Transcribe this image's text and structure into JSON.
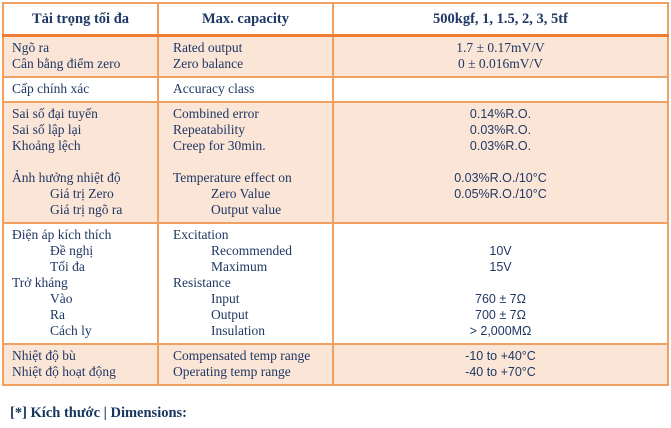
{
  "table": {
    "header": {
      "col1": "Tải trọng tối đa",
      "col2": "Max. capacity",
      "col3": "500kgf, 1, 1.5, 2, 3, 5tf"
    },
    "groups": [
      {
        "bg": "peach",
        "rows": [
          {
            "vi": "Ngõ ra",
            "en": "Rated output",
            "val": "1.7 ± 0.17mV/V",
            "serif": true
          },
          {
            "vi": "Cân bằng điểm zero",
            "en": "Zero balance",
            "val": "0 ± 0.016mV/V",
            "serif": true
          }
        ]
      },
      {
        "bg": "white",
        "rows": [
          {
            "vi": "Cấp chính xác",
            "en": "Accuracy class",
            "val": ""
          }
        ]
      },
      {
        "bg": "peach",
        "rows": [
          {
            "vi": "Sai số đại tuyến",
            "en": "Combined error",
            "val": "0.14%R.O."
          },
          {
            "vi": "Sai số lập lại",
            "en": "Repeatability",
            "val": "0.03%R.O."
          },
          {
            "vi": "Khoảng lệch",
            "en": "Creep for 30min.",
            "val": "0.03%R.O."
          },
          {
            "vi": "",
            "en": "",
            "val": ""
          },
          {
            "vi": "Ảnh hưởng nhiệt độ",
            "en": "Temperature effect on",
            "val": "0.03%R.O./10°C"
          },
          {
            "vi": "Giá trị Zero",
            "en": "Zero Value",
            "val": "0.05%R.O./10°C",
            "indent": true
          },
          {
            "vi": "Giá trị ngõ ra",
            "en": "Output value",
            "val": "",
            "indent": true
          }
        ]
      },
      {
        "bg": "white",
        "rows": [
          {
            "vi": "Điện áp kích thích",
            "en": "Excitation",
            "val": ""
          },
          {
            "vi": "Đề nghị",
            "en": "Recommended",
            "val": "10V",
            "indent": true
          },
          {
            "vi": "Tối đa",
            "en": "Maximum",
            "val": "15V",
            "indent": true
          },
          {
            "vi": "Trở kháng",
            "en": "Resistance",
            "val": ""
          },
          {
            "vi": "Vào",
            "en": "Input",
            "val": "760 ± 7Ω",
            "indent": true
          },
          {
            "vi": "Ra",
            "en": "Output",
            "val": "700 ± 7Ω",
            "indent": true
          },
          {
            "vi": "Cách ly",
            "en": "Insulation",
            "val": "> 2,000MΩ",
            "indent": true
          }
        ]
      },
      {
        "bg": "peach",
        "rows": [
          {
            "vi": "Nhiệt độ bù",
            "en": "Compensated temp range",
            "val": "-10 to +40°C"
          },
          {
            "vi": "Nhiệt độ hoạt động",
            "en": "Operating temp range",
            "val": "-40 to +70°C"
          }
        ]
      }
    ]
  },
  "footer": {
    "note": "[*] Kích thước | Dimensions:"
  },
  "colors": {
    "border_thin": "#F0A060",
    "border_thick": "#ED7D31",
    "row_peach": "#FBE5D6",
    "text_navy": "#1F3864"
  }
}
